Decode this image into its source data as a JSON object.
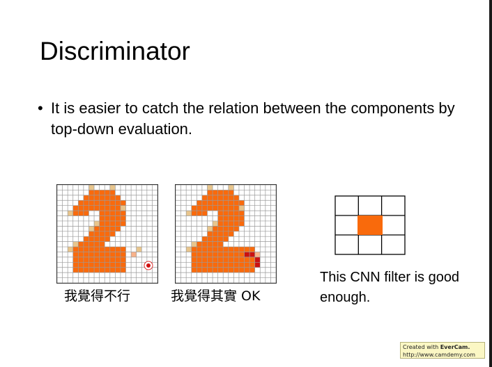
{
  "slide": {
    "title": "Discriminator",
    "bullet": "It is easier to catch the relation between the components by top-down evaluation.",
    "bullet_marker": "•"
  },
  "figures": {
    "left": {
      "caption": "我覺得不行",
      "cursor_icon": "red-dot-cursor-icon"
    },
    "right": {
      "caption": "我覺得其實 OK"
    },
    "filter": {
      "text": "This CNN filter is good enough."
    }
  },
  "watermark": {
    "prefix": "Created with ",
    "brand": "EverCam.",
    "url": "http://www.camdemy.com"
  },
  "colors": {
    "orange": "#f96a0c",
    "beige": "#e8c58c",
    "dark_red": "#cc1010",
    "peach": "#f8b28a",
    "grid_line": "#9a9a9a"
  }
}
